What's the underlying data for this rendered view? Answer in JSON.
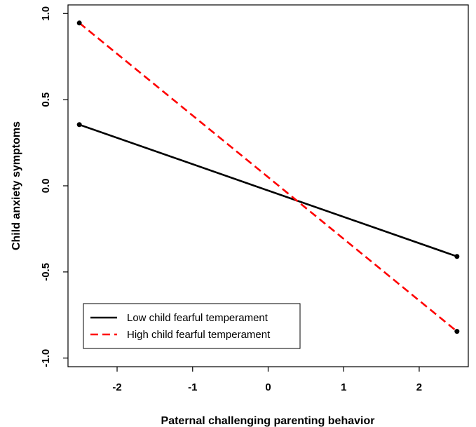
{
  "chart_data": {
    "type": "line",
    "xlabel": "Paternal challenging parenting behavior",
    "ylabel": "Child anxiety symptoms",
    "xlim": [
      -2.65,
      2.65
    ],
    "ylim": [
      -1.05,
      1.05
    ],
    "xticks": [
      -2,
      -1,
      0,
      1,
      2
    ],
    "yticks": [
      -1.0,
      -0.5,
      0.0,
      0.5,
      1.0
    ],
    "xtick_labels": [
      "-2",
      "-1",
      "0",
      "1",
      "2"
    ],
    "ytick_labels": [
      "-1.0",
      "-0.5",
      "0.0",
      "0.5",
      "1.0"
    ],
    "grid": false,
    "legend_position": "bottom-left",
    "series": [
      {
        "name": "Low child fearful temperament",
        "x": [
          -2.5,
          2.5
        ],
        "y": [
          0.355,
          -0.41
        ],
        "color": "#000000",
        "line_style": "solid"
      },
      {
        "name": "High child fearful temperament",
        "x": [
          -2.5,
          2.5
        ],
        "y": [
          0.945,
          -0.845
        ],
        "color": "#ff0000",
        "line_style": "dashed"
      }
    ]
  }
}
